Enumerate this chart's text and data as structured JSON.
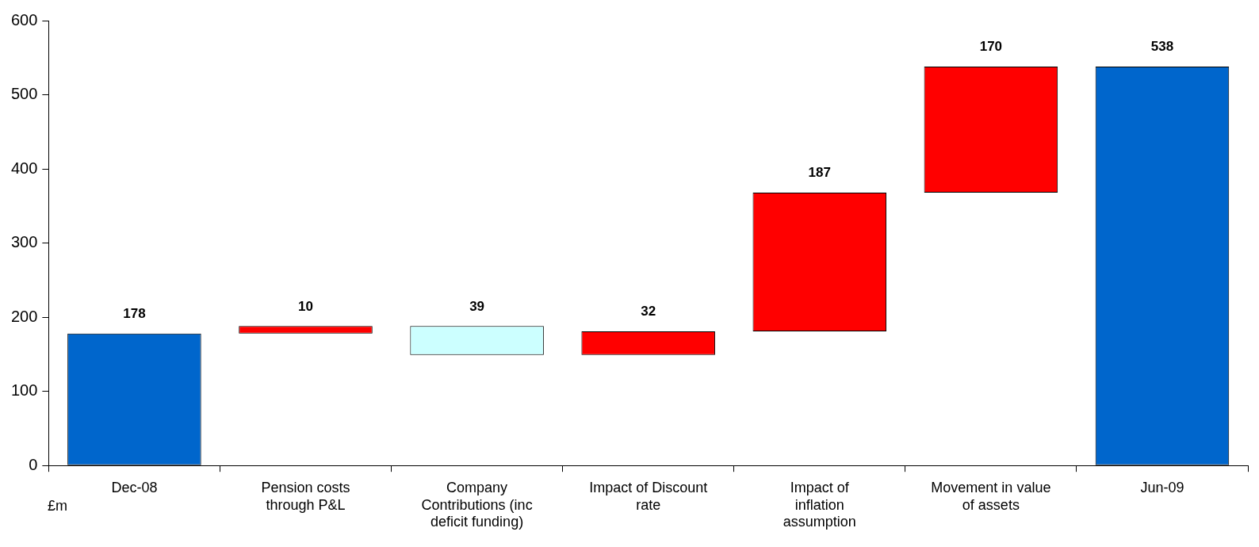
{
  "chart_data": {
    "type": "bar",
    "categories": [
      "Dec-08",
      "Pension costs through P&L",
      "Company Contributions (inc deficit funding)",
      "Impact of Discount rate",
      "Impact of inflation assumption",
      "Movement in value of assets",
      "Jun-09"
    ],
    "values": [
      178,
      10,
      39,
      32,
      187,
      170,
      538
    ],
    "base": [
      0,
      178,
      149,
      149,
      181,
      368,
      0
    ],
    "colors": [
      "#0066cc",
      "#ff0000",
      "#ccffff",
      "#ff0000",
      "#ff0000",
      "#ff0000",
      "#0066cc"
    ],
    "ylim": [
      0,
      600
    ],
    "yticks": [
      0,
      100,
      200,
      300,
      400,
      500,
      600
    ],
    "data_labels": true,
    "legend": false,
    "annotations": [
      "£m"
    ]
  }
}
